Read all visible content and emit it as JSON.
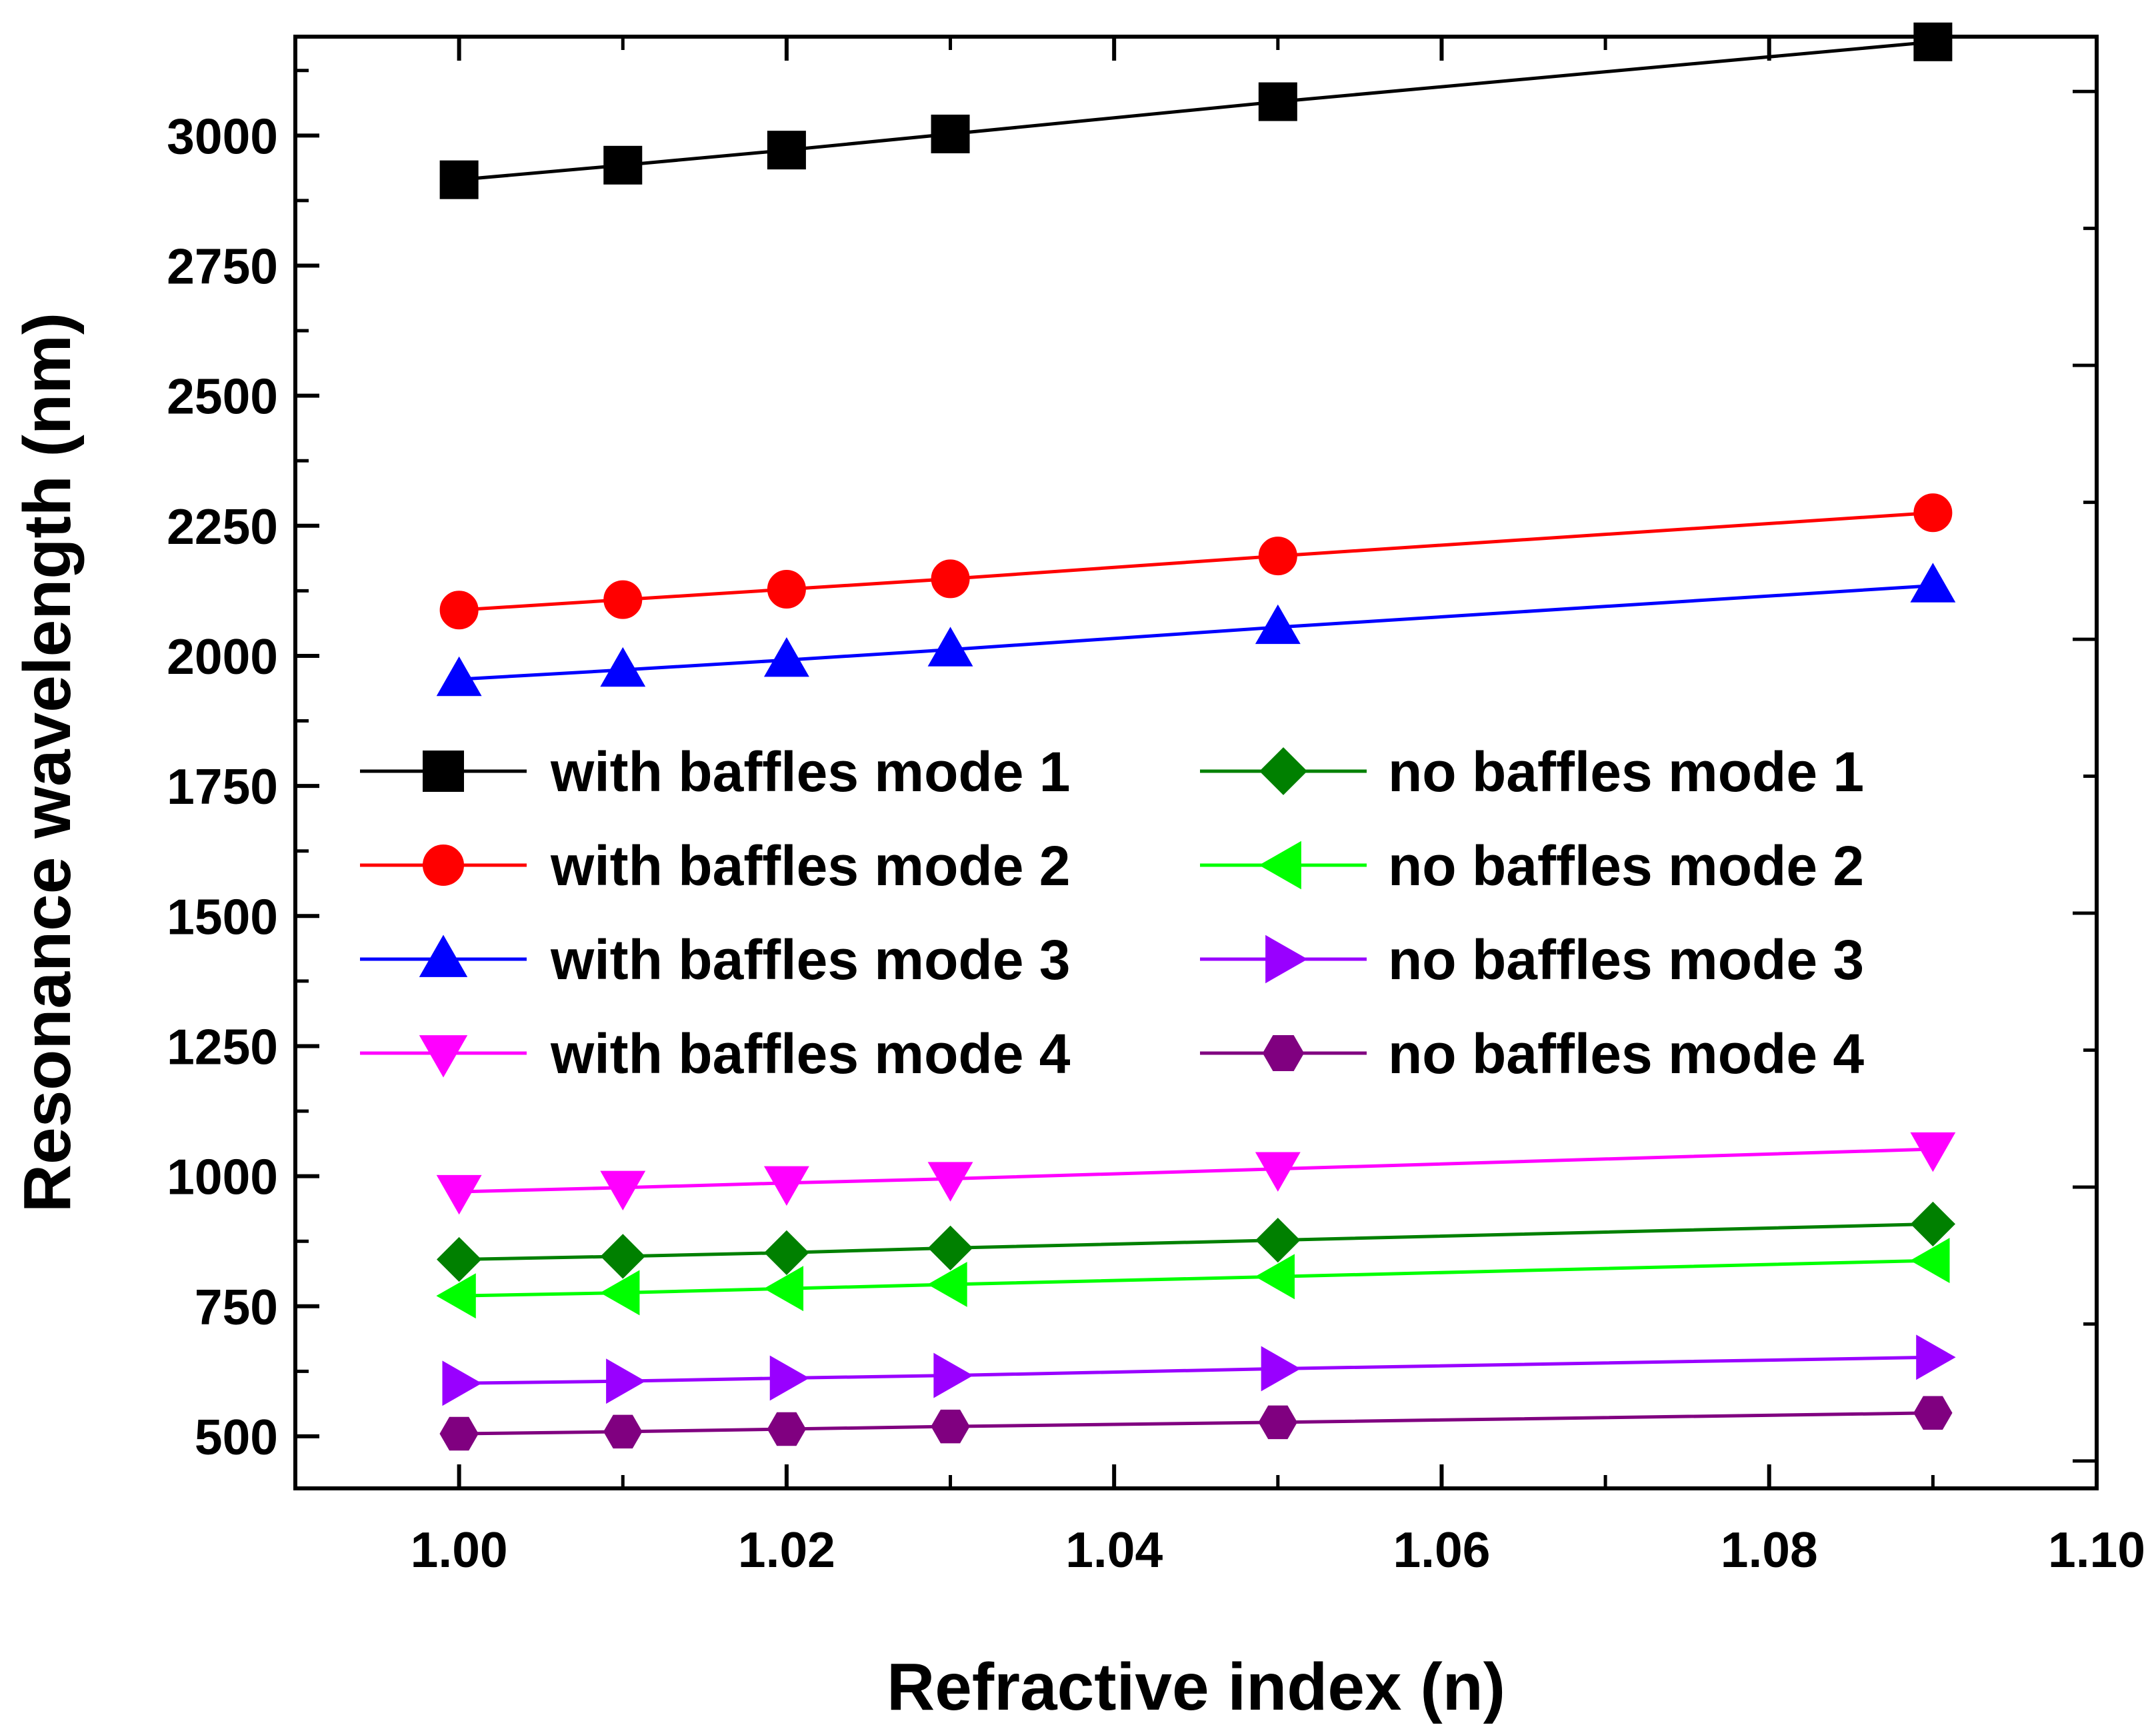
{
  "chart_data": {
    "type": "line",
    "title": "",
    "xlabel": "Refractive index (n)",
    "ylabel": "Resonance wavelength (nm)",
    "xlim": [
      0.99,
      1.1
    ],
    "ylim": [
      400,
      3190
    ],
    "x_ticks": [
      "1.00",
      "1.02",
      "1.04",
      "1.06",
      "1.08",
      "1.10"
    ],
    "y_ticks": [
      "500",
      "750",
      "1000",
      "1250",
      "1500",
      "1750",
      "2000",
      "2250",
      "2500",
      "2750",
      "3000"
    ],
    "x": [
      1.0,
      1.01,
      1.02,
      1.03,
      1.05,
      1.09
    ],
    "legend_position": "center-left",
    "series": [
      {
        "name": "with baffles mode 1",
        "color": "#000000",
        "marker": "square",
        "values": [
          2915,
          2943,
          2972,
          3003,
          3065,
          3180
        ]
      },
      {
        "name": "with baffles mode 2",
        "color": "#ff0000",
        "marker": "circle",
        "values": [
          2088,
          2108,
          2128,
          2148,
          2192,
          2275
        ]
      },
      {
        "name": "with baffles mode 3",
        "color": "#0000ff",
        "marker": "triangle-up",
        "values": [
          1955,
          1973,
          1992,
          2012,
          2055,
          2135
        ]
      },
      {
        "name": "with baffles mode 4",
        "color": "#ff00ff",
        "marker": "triangle-down",
        "values": [
          970,
          978,
          987,
          995,
          1014,
          1052
        ]
      },
      {
        "name": "no baffles mode 1",
        "color": "#008000",
        "marker": "diamond",
        "values": [
          840,
          846,
          853,
          862,
          877,
          908
        ]
      },
      {
        "name": "no baffles mode 2",
        "color": "#00ff00",
        "marker": "triangle-left",
        "values": [
          770,
          776,
          784,
          792,
          807,
          838
        ]
      },
      {
        "name": "no baffles mode 3",
        "color": "#9900ff",
        "marker": "triangle-right",
        "values": [
          602,
          606,
          612,
          617,
          630,
          652
        ]
      },
      {
        "name": "no baffles mode 4",
        "color": "#800080",
        "marker": "hexagon",
        "values": [
          505,
          509,
          514,
          519,
          527,
          545
        ]
      }
    ]
  }
}
